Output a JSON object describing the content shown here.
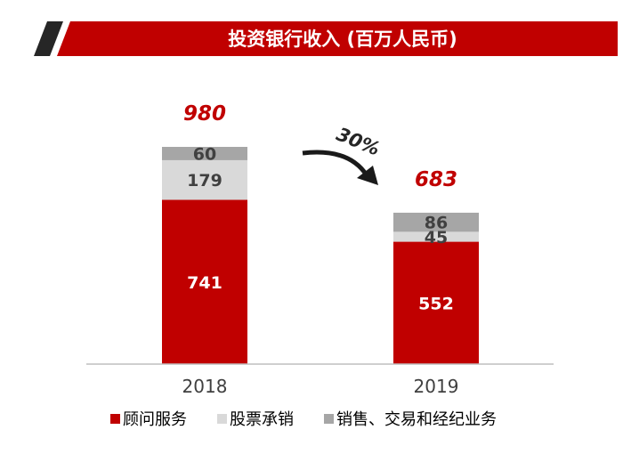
{
  "chart_data": {
    "type": "bar",
    "stacked": true,
    "title": "投资银行收入 (百万人民币)",
    "categories": [
      "2018",
      "2019"
    ],
    "series": [
      {
        "name": "顾问服务",
        "values": [
          741,
          552
        ],
        "color": "#c00000",
        "label_color": "#ffffff"
      },
      {
        "name": "股票承销",
        "values": [
          179,
          45
        ],
        "color": "#d9d9d9",
        "label_color": "#404040"
      },
      {
        "name": "销售、交易和经纪业务",
        "values": [
          60,
          86
        ],
        "color": "#a6a6a6",
        "label_color": "#404040"
      }
    ],
    "totals": [
      980,
      683
    ],
    "change_label": "30%",
    "legend_position": "bottom",
    "grid": false
  }
}
